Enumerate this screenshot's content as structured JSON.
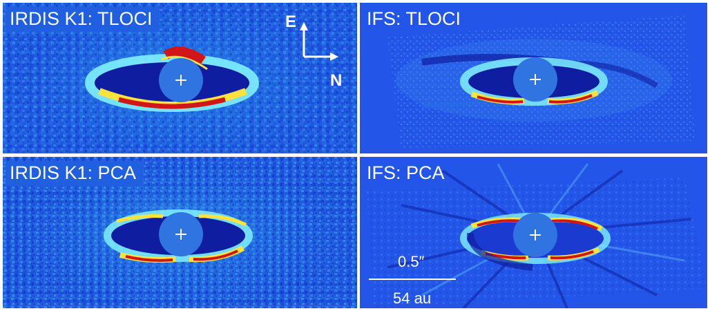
{
  "figure": {
    "panels": [
      {
        "id": "tl",
        "label": "IRDIS K1: TLOCI",
        "instrument": "IRDIS",
        "method": "TLOCI"
      },
      {
        "id": "tr",
        "label": "IFS: TLOCI",
        "instrument": "IFS",
        "method": "TLOCI"
      },
      {
        "id": "bl",
        "label": "IRDIS K1: PCA",
        "instrument": "IRDIS",
        "method": "PCA"
      },
      {
        "id": "br",
        "label": "IFS: PCA",
        "instrument": "IFS",
        "method": "PCA"
      }
    ],
    "compass": {
      "east_label": "E",
      "north_label": "N"
    },
    "scalebar": {
      "angular_label": "0.5″",
      "physical_label": "54 au"
    },
    "colors": {
      "background_blue": "#1e56e0",
      "mask_blue": "#2f74e0",
      "ring_cyan": "#7ff0ff",
      "ring_yellow": "#ffe23c",
      "ring_red": "#d01616",
      "hole_dark_blue": "#0f1ea0",
      "marker_white": "#ffffff"
    }
  }
}
